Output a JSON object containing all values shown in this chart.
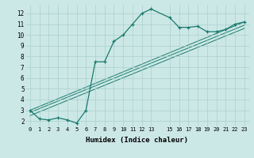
{
  "xlabel": "Humidex (Indice chaleur)",
  "ylabel": "",
  "background_color": "#cce8e6",
  "grid_color": "#aacfcd",
  "line_color": "#1a7a6e",
  "xlim": [
    -0.5,
    23.5
  ],
  "ylim": [
    1.5,
    12.8
  ],
  "xticks": [
    0,
    1,
    2,
    3,
    4,
    5,
    6,
    7,
    8,
    9,
    10,
    11,
    12,
    13,
    15,
    16,
    17,
    18,
    19,
    20,
    21,
    22,
    23
  ],
  "yticks": [
    2,
    3,
    4,
    5,
    6,
    7,
    8,
    9,
    10,
    11,
    12
  ],
  "series_x": [
    0,
    1,
    2,
    3,
    4,
    5,
    6,
    7,
    8,
    9,
    10,
    11,
    12,
    13,
    15,
    16,
    17,
    18,
    19,
    20,
    21,
    22,
    23
  ],
  "series_y": [
    3.0,
    2.2,
    2.1,
    2.3,
    2.1,
    1.8,
    3.0,
    7.5,
    7.5,
    9.4,
    10.0,
    11.0,
    12.0,
    12.4,
    11.6,
    10.7,
    10.7,
    10.8,
    10.3,
    10.3,
    10.5,
    11.0,
    11.2
  ],
  "line1_x": [
    0,
    23
  ],
  "line1_y": [
    3.0,
    11.2
  ],
  "line2_x": [
    0,
    23
  ],
  "line2_y": [
    2.8,
    10.9
  ],
  "line3_x": [
    0,
    23
  ],
  "line3_y": [
    2.5,
    10.6
  ]
}
